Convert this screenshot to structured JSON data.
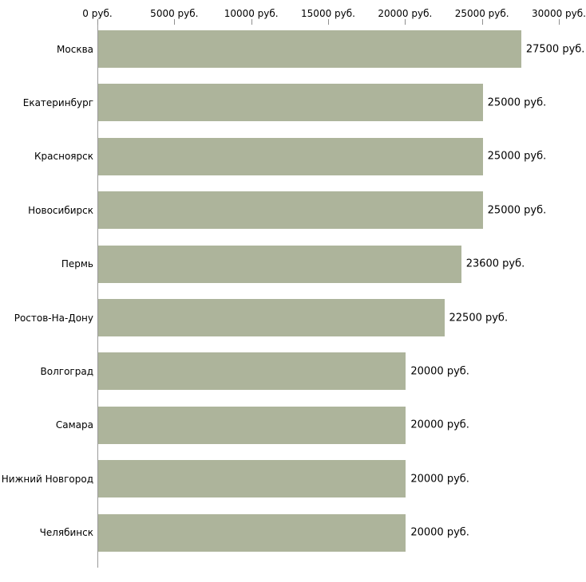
{
  "chart_data": {
    "type": "bar",
    "orientation": "horizontal",
    "title": "",
    "xlabel": "",
    "ylabel": "",
    "categories": [
      "Москва",
      "Екатеринбург",
      "Красноярск",
      "Новосибирск",
      "Пермь",
      "Ростов-На-Дону",
      "Волгоград",
      "Самара",
      "Нижний Новгород",
      "Челябинск"
    ],
    "values": [
      27500,
      25000,
      25000,
      25000,
      23600,
      22500,
      20000,
      20000,
      20000,
      20000
    ],
    "value_labels": [
      "27500 руб.",
      "25000 руб.",
      "25000 руб.",
      "25000 руб.",
      "23600 руб.",
      "22500 руб.",
      "20000 руб.",
      "20000 руб.",
      "20000 руб.",
      "20000 руб."
    ],
    "x_ticks": [
      0,
      5000,
      10000,
      15000,
      20000,
      25000,
      30000
    ],
    "x_tick_labels": [
      "0 руб.",
      "5000 руб.",
      "10000 руб.",
      "15000 руб.",
      "20000 руб.",
      "25000 руб.",
      "30000 руб."
    ],
    "xlim": [
      0,
      30000
    ],
    "grid": false,
    "legend": false,
    "bar_color": "#adb49b",
    "axis_color": "#9a9a9a",
    "text_color": "#000000"
  }
}
